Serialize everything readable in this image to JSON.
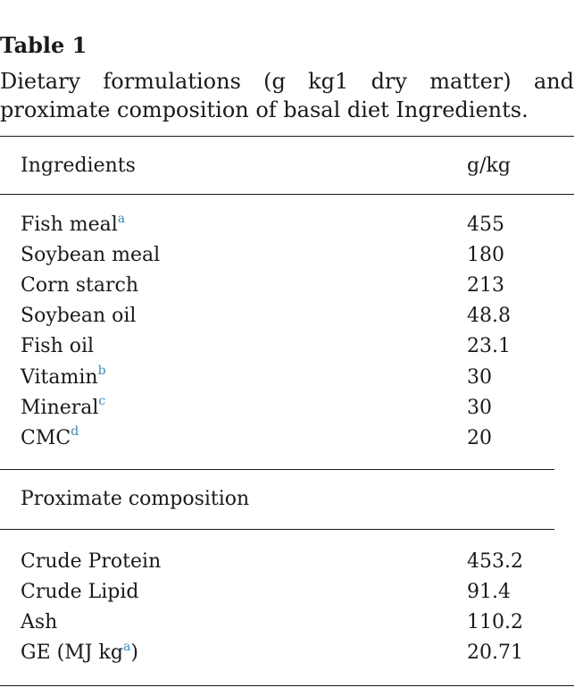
{
  "caption": {
    "label": "Table 1",
    "text": "Dietary formulations (g kg1 dry matter) and proximate composition of basal diet Ingredients."
  },
  "header": {
    "ingredients": "Ingredients",
    "unit": "g/kg"
  },
  "ingredients": [
    {
      "name": "Fish meal",
      "sup": "a",
      "value": "455"
    },
    {
      "name": "Soybean meal",
      "sup": "",
      "value": "180"
    },
    {
      "name": "Corn starch",
      "sup": "",
      "value": "213"
    },
    {
      "name": "Soybean oil",
      "sup": "",
      "value": "48.8"
    },
    {
      "name": "Fish oil",
      "sup": "",
      "value": "23.1"
    },
    {
      "name": "Vitamin",
      "sup": "b",
      "value": "30"
    },
    {
      "name": "Mineral",
      "sup": "c",
      "value": "30"
    },
    {
      "name": "CMC",
      "sup": "d",
      "value": "20"
    }
  ],
  "proximate_heading": "Proximate composition",
  "proximate": [
    {
      "name": "Crude Protein",
      "value": "453.2"
    },
    {
      "name": "Crude Lipid",
      "value": "91.4"
    },
    {
      "name": "Ash",
      "value": "110.2"
    },
    {
      "name": "GE (MJ kg",
      "sup": "a",
      "suffix": ")",
      "value": "20.71"
    }
  ],
  "colors": {
    "text": "#1a1a1a",
    "footnote_link": "#3d87b5"
  }
}
